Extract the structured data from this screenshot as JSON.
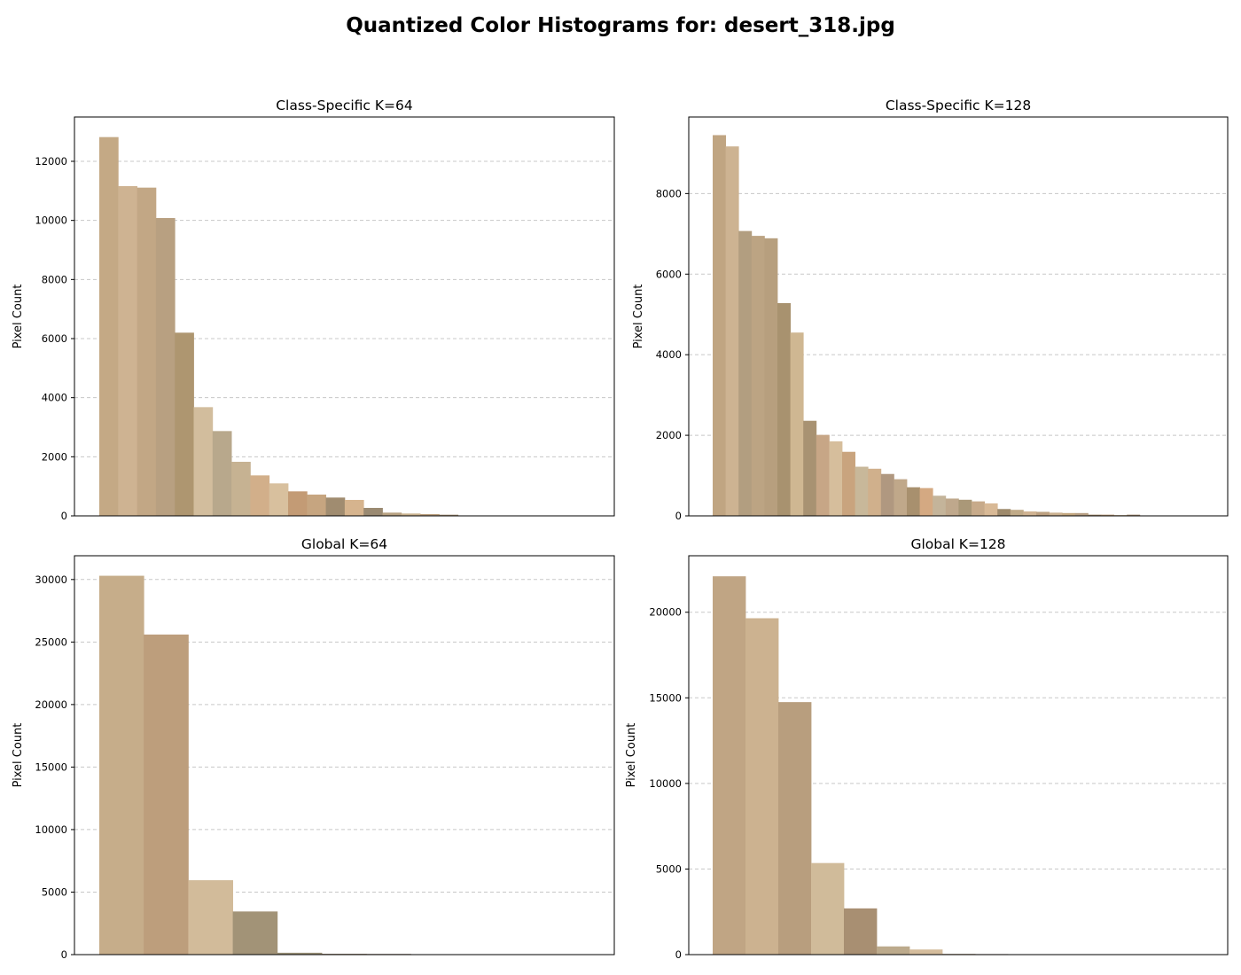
{
  "figure": {
    "suptitle": "Quantized Color Histograms for: desert_318.jpg"
  },
  "chart_data": [
    {
      "type": "bar",
      "title": "Class-Specific K=64",
      "xlabel": "",
      "ylabel": "Pixel Count",
      "ylim": [
        0,
        13500
      ],
      "yticks": [
        0,
        2000,
        4000,
        6000,
        8000,
        10000,
        12000
      ],
      "grid": "y dashed",
      "xticks": "none",
      "values": [
        12820,
        11160,
        11110,
        10080,
        6200,
        3680,
        2870,
        1830,
        1370,
        1100,
        830,
        720,
        620,
        540,
        270,
        110,
        80,
        60,
        40
      ],
      "colors": [
        "#c4a985",
        "#ceb392",
        "#c2a785",
        "#b8a081",
        "#ae9670",
        "#d2bd9d",
        "#b8a88c",
        "#c6b292",
        "#d2af8a",
        "#d8c09e",
        "#c39b75",
        "#c6a580",
        "#a08c70",
        "#d6b48e",
        "#9a8a72",
        "#b8a282",
        "#cbb38f",
        "#bca17f",
        "#a89478"
      ]
    },
    {
      "type": "bar",
      "title": "Class-Specific K=128",
      "xlabel": "",
      "ylabel": "Pixel Count",
      "ylim": [
        0,
        9900
      ],
      "yticks": [
        0,
        2000,
        4000,
        6000,
        8000
      ],
      "grid": "y dashed",
      "xticks": "none",
      "values": [
        9450,
        9170,
        7070,
        6950,
        6890,
        5280,
        4550,
        2360,
        2010,
        1850,
        1590,
        1220,
        1170,
        1040,
        910,
        710,
        690,
        500,
        430,
        400,
        360,
        310,
        170,
        150,
        110,
        100,
        80,
        70,
        70,
        30,
        30,
        20,
        30
      ],
      "colors": [
        "#c0a582",
        "#cdb392",
        "#b29e80",
        "#bca483",
        "#b79f7e",
        "#a8926f",
        "#cfb792",
        "#a89272",
        "#c7a686",
        "#d6be9c",
        "#c9a47e",
        "#c8b89a",
        "#d0b08c",
        "#b09880",
        "#c0a88a",
        "#a8906e",
        "#d4a982",
        "#c4b49a",
        "#bfa88c",
        "#aa9878",
        "#c7aa8a",
        "#d8b996",
        "#9e8a6c",
        "#c0aa88",
        "#d0b392",
        "#bca080",
        "#cbb190",
        "#c4a880",
        "#b8a084",
        "#a48c6c",
        "#ba9a76",
        "#c9b291",
        "#a89074"
      ]
    },
    {
      "type": "bar",
      "title": "Global K=64",
      "xlabel": "",
      "ylabel": "Pixel Count",
      "ylim": [
        0,
        31900
      ],
      "yticks": [
        0,
        5000,
        10000,
        15000,
        20000,
        25000,
        30000
      ],
      "grid": "y dashed",
      "xticks": "none",
      "values": [
        30300,
        25600,
        5950,
        3450,
        150,
        60,
        50
      ],
      "colors": [
        "#c6ad8a",
        "#bd9e7c",
        "#d2bb9a",
        "#a29377",
        "#9c9278",
        "#8a6a50",
        "#7a5c44"
      ]
    },
    {
      "type": "bar",
      "title": "Global K=128",
      "xlabel": "",
      "ylabel": "Pixel Count",
      "ylim": [
        0,
        23300
      ],
      "yticks": [
        0,
        5000,
        10000,
        15000,
        20000
      ],
      "grid": "y dashed",
      "xticks": "none",
      "values": [
        22100,
        19650,
        14750,
        5350,
        2700,
        480,
        300,
        40,
        30,
        20
      ],
      "colors": [
        "#c0a584",
        "#ccb290",
        "#b89e7e",
        "#d0bb9a",
        "#a88f72",
        "#bcaa8c",
        "#d4bc9c",
        "#a08466",
        "#8c7456",
        "#a49478"
      ]
    }
  ]
}
